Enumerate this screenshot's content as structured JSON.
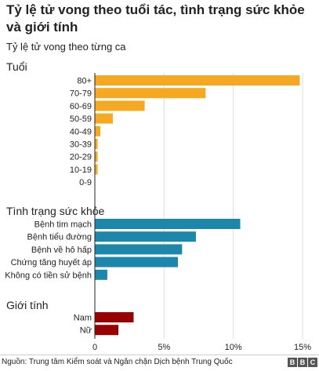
{
  "header": {
    "title": "Tỷ lệ tử vong theo tuổi tác, tình trạng sức khỏe và giới tính",
    "subtitle": "Tỷ lệ tử vong theo từng ca"
  },
  "footer": {
    "source": "Nguồn: Trung tâm Kiểm soát và Ngăn chặn Dịch bệnh Trung Quốc",
    "logo_letters": [
      "B",
      "B",
      "C"
    ]
  },
  "colors": {
    "age": "#f7a823",
    "health": "#1d86ab",
    "gender": "#990000",
    "grid": "#dddddd",
    "axis": "#222222"
  },
  "chart_data": [
    {
      "type": "bar",
      "orientation": "horizontal",
      "group": "Tuổi",
      "color": "#f7a823",
      "categories": [
        "80+",
        "70-79",
        "60-69",
        "50-59",
        "40-49",
        "30-39",
        "20-29",
        "10-19",
        "0-9"
      ],
      "values": [
        14.8,
        8.0,
        3.6,
        1.3,
        0.4,
        0.2,
        0.2,
        0.2,
        0.0
      ],
      "xlim": [
        0,
        15
      ]
    },
    {
      "type": "bar",
      "orientation": "horizontal",
      "group": "Tình trạng sức khỏe",
      "color": "#1d86ab",
      "categories": [
        "Bệnh tim mạch",
        "Bệnh tiểu đường",
        "Bệnh về hô hấp",
        "Chứng tăng huyết áp",
        "Không có tiền sử bệnh"
      ],
      "values": [
        10.5,
        7.3,
        6.3,
        6.0,
        0.9
      ],
      "xlim": [
        0,
        15
      ]
    },
    {
      "type": "bar",
      "orientation": "horizontal",
      "group": "Giới tính",
      "color": "#990000",
      "categories": [
        "Nam",
        "Nữ"
      ],
      "values": [
        2.8,
        1.7
      ],
      "xlim": [
        0,
        15
      ]
    }
  ],
  "x_axis": {
    "ticks": [
      0,
      5,
      10,
      15
    ],
    "tick_labels": [
      "0",
      "5%",
      "10%",
      "15%"
    ],
    "xlim": [
      0,
      15
    ]
  }
}
